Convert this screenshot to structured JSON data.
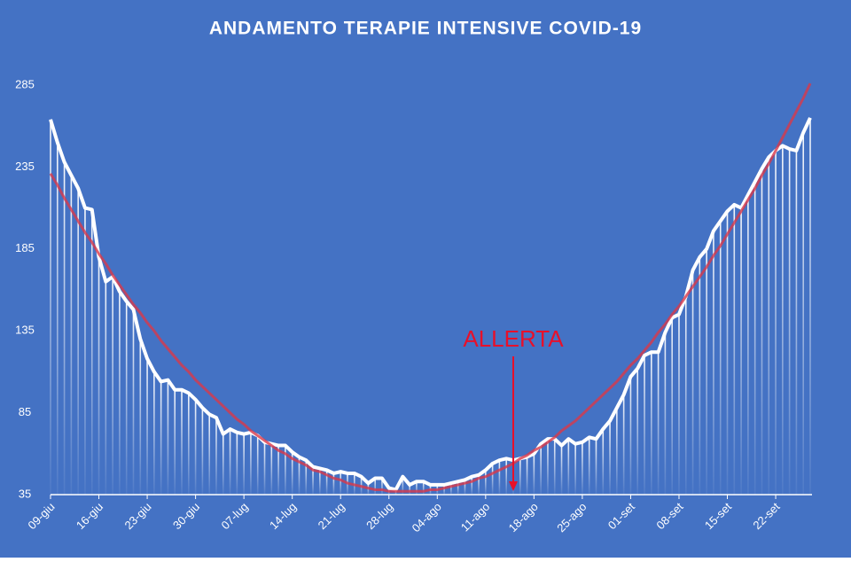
{
  "chart_data": {
    "type": "line",
    "title": "ANDAMENTO TERAPIE INTENSIVE COVID-19",
    "annotation": "ALLERTA",
    "categories": [
      "09-giu",
      null,
      null,
      null,
      null,
      null,
      null,
      "16-giu",
      null,
      null,
      null,
      null,
      null,
      null,
      "23-giu",
      null,
      null,
      null,
      null,
      null,
      null,
      "30-giu",
      null,
      null,
      null,
      null,
      null,
      null,
      "07-lug",
      null,
      null,
      null,
      null,
      null,
      null,
      "14-lug",
      null,
      null,
      null,
      null,
      null,
      null,
      "21-lug",
      null,
      null,
      null,
      null,
      null,
      null,
      "28-lug",
      null,
      null,
      null,
      null,
      null,
      null,
      "04-ago",
      null,
      null,
      null,
      null,
      null,
      null,
      "11-ago",
      null,
      null,
      null,
      null,
      null,
      null,
      "18-ago",
      null,
      null,
      null,
      null,
      null,
      null,
      "25-ago",
      null,
      null,
      null,
      null,
      null,
      null,
      "01-set",
      null,
      null,
      null,
      null,
      null,
      null,
      "08-set",
      null,
      null,
      null,
      null,
      null,
      null,
      "15-set",
      null,
      null,
      null,
      null,
      null,
      null,
      "22-set",
      null,
      null,
      null,
      null,
      null
    ],
    "series": [
      {
        "color": "#ffffff",
        "values": [
          264,
          250,
          238,
          230,
          222,
          210,
          209,
          180,
          165,
          168,
          159,
          153,
          148,
          130,
          118,
          110,
          104,
          105,
          99,
          99,
          97,
          93,
          88,
          84,
          82,
          72,
          75,
          73,
          72,
          73,
          71,
          67,
          66,
          65,
          65,
          61,
          58,
          56,
          52,
          51,
          50,
          48,
          49,
          48,
          48,
          46,
          42,
          45,
          45,
          39,
          38,
          46,
          41,
          43,
          43,
          41,
          41,
          41,
          42,
          43,
          44,
          46,
          47,
          50,
          54,
          56,
          57,
          56,
          57,
          58,
          60,
          66,
          69,
          69,
          65,
          69,
          66,
          67,
          70,
          69,
          75,
          80,
          88,
          96,
          107,
          112,
          120,
          122,
          122,
          134,
          143,
          145,
          156,
          172,
          180,
          185,
          196,
          202,
          208,
          212,
          210,
          218,
          226,
          234,
          241,
          245,
          248,
          246,
          245,
          256,
          265
        ]
      },
      {
        "color": "#d9384a",
        "values": [
          231,
          224,
          216,
          209,
          202,
          195,
          189,
          182,
          176,
          169,
          163,
          157,
          151,
          146,
          140,
          135,
          129,
          124,
          119,
          114,
          110,
          105,
          101,
          97,
          93,
          89,
          85,
          81,
          78,
          74,
          71,
          68,
          65,
          62,
          60,
          57,
          55,
          53,
          50,
          49,
          47,
          45,
          44,
          42,
          41,
          40,
          39,
          38,
          38,
          37,
          37,
          37,
          37,
          37,
          37,
          38,
          38,
          39,
          40,
          41,
          42,
          43,
          45,
          46,
          48,
          50,
          52,
          54,
          57,
          59,
          62,
          64,
          67,
          70,
          74,
          77,
          80,
          84,
          88,
          92,
          96,
          100,
          104,
          109,
          114,
          118,
          123,
          128,
          134,
          139,
          145,
          150,
          156,
          162,
          168,
          174,
          181,
          187,
          194,
          201,
          208,
          215,
          222,
          230,
          237,
          245,
          253,
          261,
          269,
          277,
          286
        ]
      }
    ],
    "ylim": [
      35,
      285
    ],
    "yticks": [
      35,
      85,
      135,
      185,
      235,
      285
    ],
    "background": "#4472c4",
    "annotation_color": "#e8102a"
  }
}
